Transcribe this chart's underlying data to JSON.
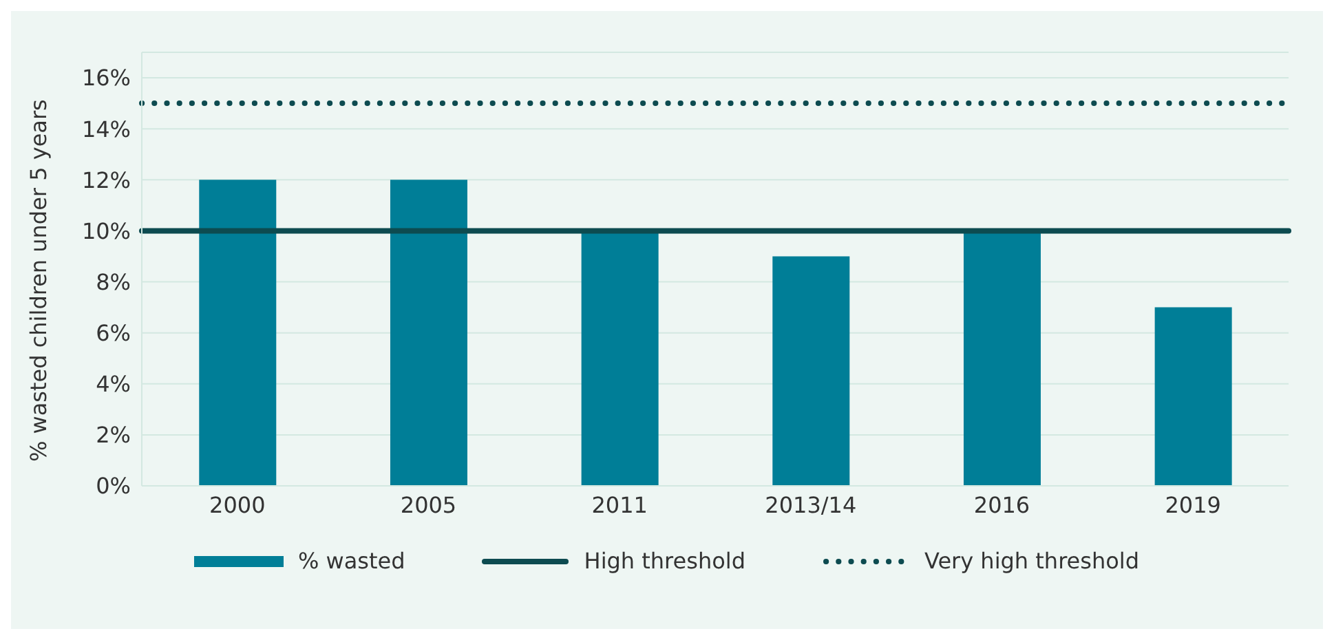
{
  "chart_data": {
    "type": "bar",
    "ylabel": "% wasted children under 5 years",
    "categories": [
      "2000",
      "2005",
      "2011",
      "2013/14",
      "2016",
      "2019"
    ],
    "series": [
      {
        "name": "% wasted",
        "color": "#007e97",
        "values": [
          12,
          12,
          10,
          9,
          10,
          7
        ]
      }
    ],
    "ylim": [
      0,
      17
    ],
    "yticks": [
      {
        "value": 0,
        "label": "0%"
      },
      {
        "value": 2,
        "label": "2%"
      },
      {
        "value": 4,
        "label": "4%"
      },
      {
        "value": 6,
        "label": "6%"
      },
      {
        "value": 8,
        "label": "8%"
      },
      {
        "value": 10,
        "label": "10%"
      },
      {
        "value": 12,
        "label": "12%"
      },
      {
        "value": 14,
        "label": "14%"
      },
      {
        "value": 16,
        "label": "16%"
      }
    ],
    "ref_lines": [
      {
        "axis": "y",
        "value": 10,
        "label": "High threshold",
        "color": "#0d4b50",
        "line_style": "solid"
      },
      {
        "axis": "y",
        "value": 15,
        "label": "Very high threshold",
        "color": "#0d4b50",
        "line_style": "dotted"
      }
    ],
    "grid": "y",
    "legend": "bottom"
  }
}
